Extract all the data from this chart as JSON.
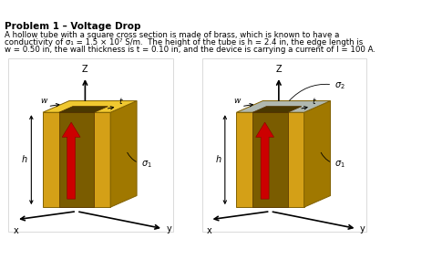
{
  "title": "Problem 1 – Voltage Drop",
  "body_text_1": "A hollow tube with a square cross section is made of brass, which is known to have a",
  "body_text_2": "conductivity of σ₁ = 1.5 × 10⁷ S/m.  The height of the tube is h = 2.4 in, the edge length is",
  "body_text_3": "w = 0.50 in, the wall thickness is t = 0.10 in, and the device is carrying a current of I = 100 A.",
  "bg_color": "#ffffff",
  "box_color": "#e8e8e8",
  "gold_front": "#D4A017",
  "gold_right": "#A07800",
  "gold_top": "#F0C830",
  "gold_inner_front": "#7a5c00",
  "gold_inner_top": "#4a3800",
  "gray_top": "#B0B8B0",
  "red_arrow": "#CC0000",
  "text_color": "#000000"
}
